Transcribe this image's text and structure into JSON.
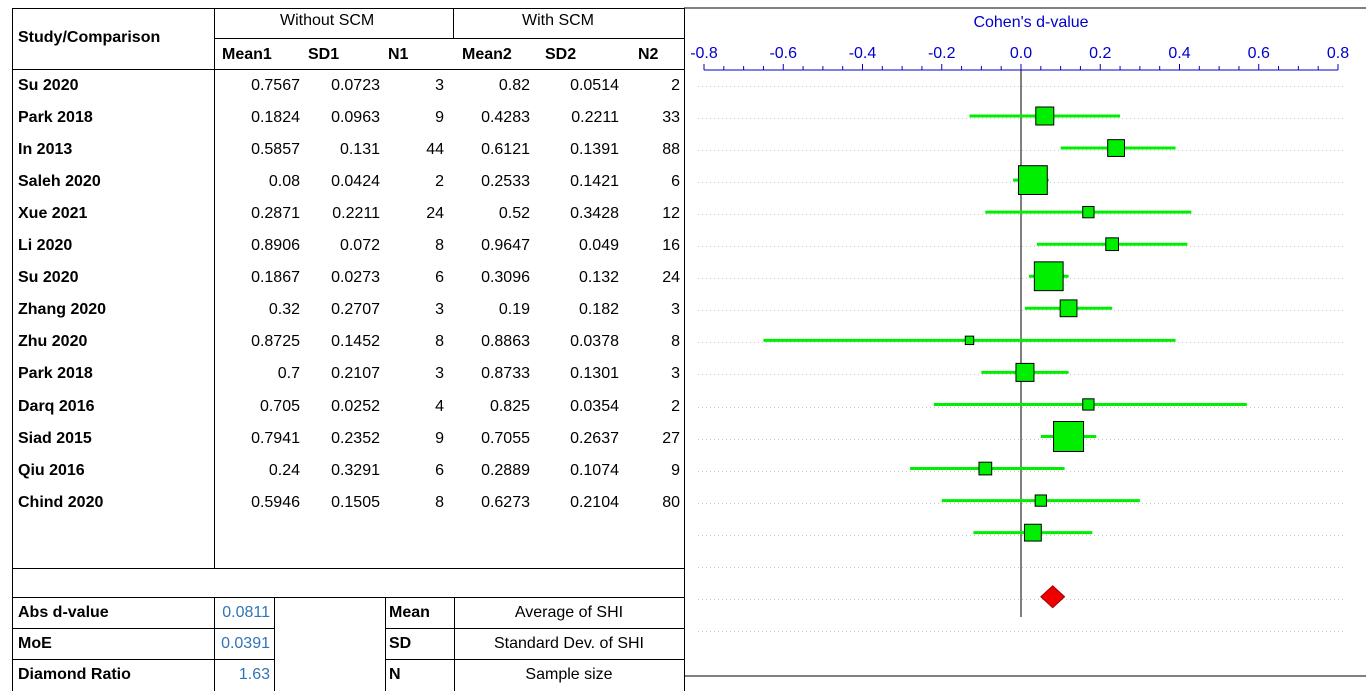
{
  "header": {
    "study_label": "Study/Comparison",
    "group1_label": "Without SCM",
    "group2_label": "With SCM",
    "columns": [
      "Mean1",
      "SD1",
      "N1",
      "Mean2",
      "SD2",
      "N2"
    ]
  },
  "studies": [
    {
      "name": "Su 2020",
      "mean1": "0.7567",
      "sd1": "0.0723",
      "n1": "3",
      "mean2": "0.82",
      "sd2": "0.0514",
      "n2": "2"
    },
    {
      "name": "Park 2018",
      "mean1": "0.1824",
      "sd1": "0.0963",
      "n1": "9",
      "mean2": "0.4283",
      "sd2": "0.2211",
      "n2": "33"
    },
    {
      "name": "In 2013",
      "mean1": "0.5857",
      "sd1": "0.131",
      "n1": "44",
      "mean2": "0.6121",
      "sd2": "0.1391",
      "n2": "88"
    },
    {
      "name": "Saleh 2020",
      "mean1": "0.08",
      "sd1": "0.0424",
      "n1": "2",
      "mean2": "0.2533",
      "sd2": "0.1421",
      "n2": "6"
    },
    {
      "name": "Xue 2021",
      "mean1": "0.2871",
      "sd1": "0.2211",
      "n1": "24",
      "mean2": "0.52",
      "sd2": "0.3428",
      "n2": "12"
    },
    {
      "name": "Li 2020",
      "mean1": "0.8906",
      "sd1": "0.072",
      "n1": "8",
      "mean2": "0.9647",
      "sd2": "0.049",
      "n2": "16"
    },
    {
      "name": "Su 2020",
      "mean1": "0.1867",
      "sd1": "0.0273",
      "n1": "6",
      "mean2": "0.3096",
      "sd2": "0.132",
      "n2": "24"
    },
    {
      "name": "Zhang 2020",
      "mean1": "0.32",
      "sd1": "0.2707",
      "n1": "3",
      "mean2": "0.19",
      "sd2": "0.182",
      "n2": "3"
    },
    {
      "name": "Zhu 2020",
      "mean1": "0.8725",
      "sd1": "0.1452",
      "n1": "8",
      "mean2": "0.8863",
      "sd2": "0.0378",
      "n2": "8"
    },
    {
      "name": "Park 2018",
      "mean1": "0.7",
      "sd1": "0.2107",
      "n1": "3",
      "mean2": "0.8733",
      "sd2": "0.1301",
      "n2": "3"
    },
    {
      "name": "Darq 2016",
      "mean1": "0.705",
      "sd1": "0.0252",
      "n1": "4",
      "mean2": "0.825",
      "sd2": "0.0354",
      "n2": "2"
    },
    {
      "name": "Siad 2015",
      "mean1": "0.7941",
      "sd1": "0.2352",
      "n1": "9",
      "mean2": "0.7055",
      "sd2": "0.2637",
      "n2": "27"
    },
    {
      "name": "Qiu 2016",
      "mean1": "0.24",
      "sd1": "0.3291",
      "n1": "6",
      "mean2": "0.2889",
      "sd2": "0.1074",
      "n2": "9"
    },
    {
      "name": "Chind 2020",
      "mean1": "0.5946",
      "sd1": "0.1505",
      "n1": "8",
      "mean2": "0.6273",
      "sd2": "0.2104",
      "n2": "80"
    }
  ],
  "summary": [
    {
      "label": "Abs d-value",
      "value": "0.0811"
    },
    {
      "label": "MoE",
      "value": "0.0391"
    },
    {
      "label": "Diamond Ratio",
      "value": "1.63"
    }
  ],
  "legend": [
    {
      "key": "Mean",
      "desc": "Average of SHI"
    },
    {
      "key": "SD",
      "desc": "Standard Dev. of SHI"
    },
    {
      "key": "N",
      "desc": "Sample size"
    }
  ],
  "chart_data": {
    "type": "forest",
    "title": "Cohen's d-value",
    "xlim": [
      -0.8,
      0.8
    ],
    "tick_labels": [
      "-0.8",
      "-0.6",
      "-0.4",
      "-0.2",
      "0.0",
      "0.2",
      "0.4",
      "0.6",
      "0.8"
    ],
    "tick_values": [
      -0.8,
      -0.6,
      -0.4,
      -0.2,
      0.0,
      0.2,
      0.4,
      0.6,
      0.8
    ],
    "reference_line": 0,
    "grid": "dotted-horizontal",
    "colors": {
      "ci": "#00ee00",
      "marker": "#00ee00",
      "diamond": "#ee0000",
      "axis_text": "#0000cc"
    },
    "points": [
      {
        "d": 0.06,
        "lo": -0.13,
        "hi": 0.25,
        "weight": 0.5
      },
      {
        "d": 0.24,
        "lo": 0.1,
        "hi": 0.39,
        "weight": 0.45
      },
      {
        "d": 0.03,
        "lo": -0.02,
        "hi": 0.07,
        "weight": 0.95
      },
      {
        "d": 0.17,
        "lo": -0.09,
        "hi": 0.43,
        "weight": 0.22
      },
      {
        "d": 0.23,
        "lo": 0.04,
        "hi": 0.42,
        "weight": 0.28
      },
      {
        "d": 0.07,
        "lo": 0.02,
        "hi": 0.12,
        "weight": 0.95
      },
      {
        "d": 0.12,
        "lo": 0.01,
        "hi": 0.23,
        "weight": 0.45
      },
      {
        "d": -0.13,
        "lo": -0.65,
        "hi": 0.39,
        "weight": 0.1
      },
      {
        "d": 0.01,
        "lo": -0.1,
        "hi": 0.12,
        "weight": 0.5
      },
      {
        "d": 0.17,
        "lo": -0.22,
        "hi": 0.57,
        "weight": 0.22
      },
      {
        "d": 0.12,
        "lo": 0.05,
        "hi": 0.19,
        "weight": 1.0
      },
      {
        "d": -0.09,
        "lo": -0.28,
        "hi": 0.11,
        "weight": 0.28
      },
      {
        "d": 0.05,
        "lo": -0.2,
        "hi": 0.3,
        "weight": 0.22
      },
      {
        "d": 0.03,
        "lo": -0.12,
        "hi": 0.18,
        "weight": 0.45
      }
    ],
    "summary_effect": {
      "d": 0.08,
      "lo": 0.05,
      "hi": 0.11
    }
  }
}
